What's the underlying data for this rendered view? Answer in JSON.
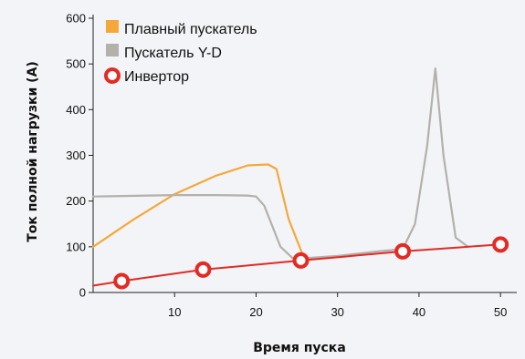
{
  "chart_data": {
    "type": "line",
    "title": "",
    "xlabel": "Время пуска",
    "ylabel": "Ток полной нагрузки (А)",
    "xlim": [
      0,
      52
    ],
    "ylim": [
      0,
      600
    ],
    "x_ticks": [
      10,
      20,
      30,
      40,
      50
    ],
    "y_ticks": [
      0,
      100,
      200,
      300,
      400,
      500,
      600
    ],
    "grid": false,
    "legend_position": "top-left",
    "series": [
      {
        "name": "Плавный пускатель",
        "color": "#f5a83a",
        "marker": "none",
        "x": [
          0,
          5,
          10,
          15,
          19,
          21.5,
          22.5,
          24,
          26
        ],
        "y": [
          100,
          160,
          215,
          255,
          278,
          280,
          270,
          160,
          70
        ]
      },
      {
        "name": "Пускатель Y-D",
        "color": "#b4b0aa",
        "marker": "none",
        "x": [
          0,
          10,
          15,
          19,
          20,
          21,
          23,
          24.5,
          26,
          30,
          35,
          38,
          39.5,
          41,
          42,
          43,
          44.5,
          46
        ],
        "y": [
          210,
          213,
          213,
          212,
          210,
          190,
          100,
          75,
          75,
          80,
          90,
          95,
          150,
          320,
          490,
          300,
          120,
          100
        ]
      },
      {
        "name": "Инвертор",
        "color": "#e32b24",
        "marker": "circle",
        "x": [
          0,
          3.5,
          13.5,
          25.5,
          38,
          50
        ],
        "y": [
          15,
          25,
          50,
          70,
          90,
          105
        ],
        "marked_points": [
          {
            "x": 3.5,
            "y": 25
          },
          {
            "x": 13.5,
            "y": 50
          },
          {
            "x": 25.5,
            "y": 70
          },
          {
            "x": 38,
            "y": 90
          },
          {
            "x": 50,
            "y": 105
          }
        ]
      }
    ]
  }
}
